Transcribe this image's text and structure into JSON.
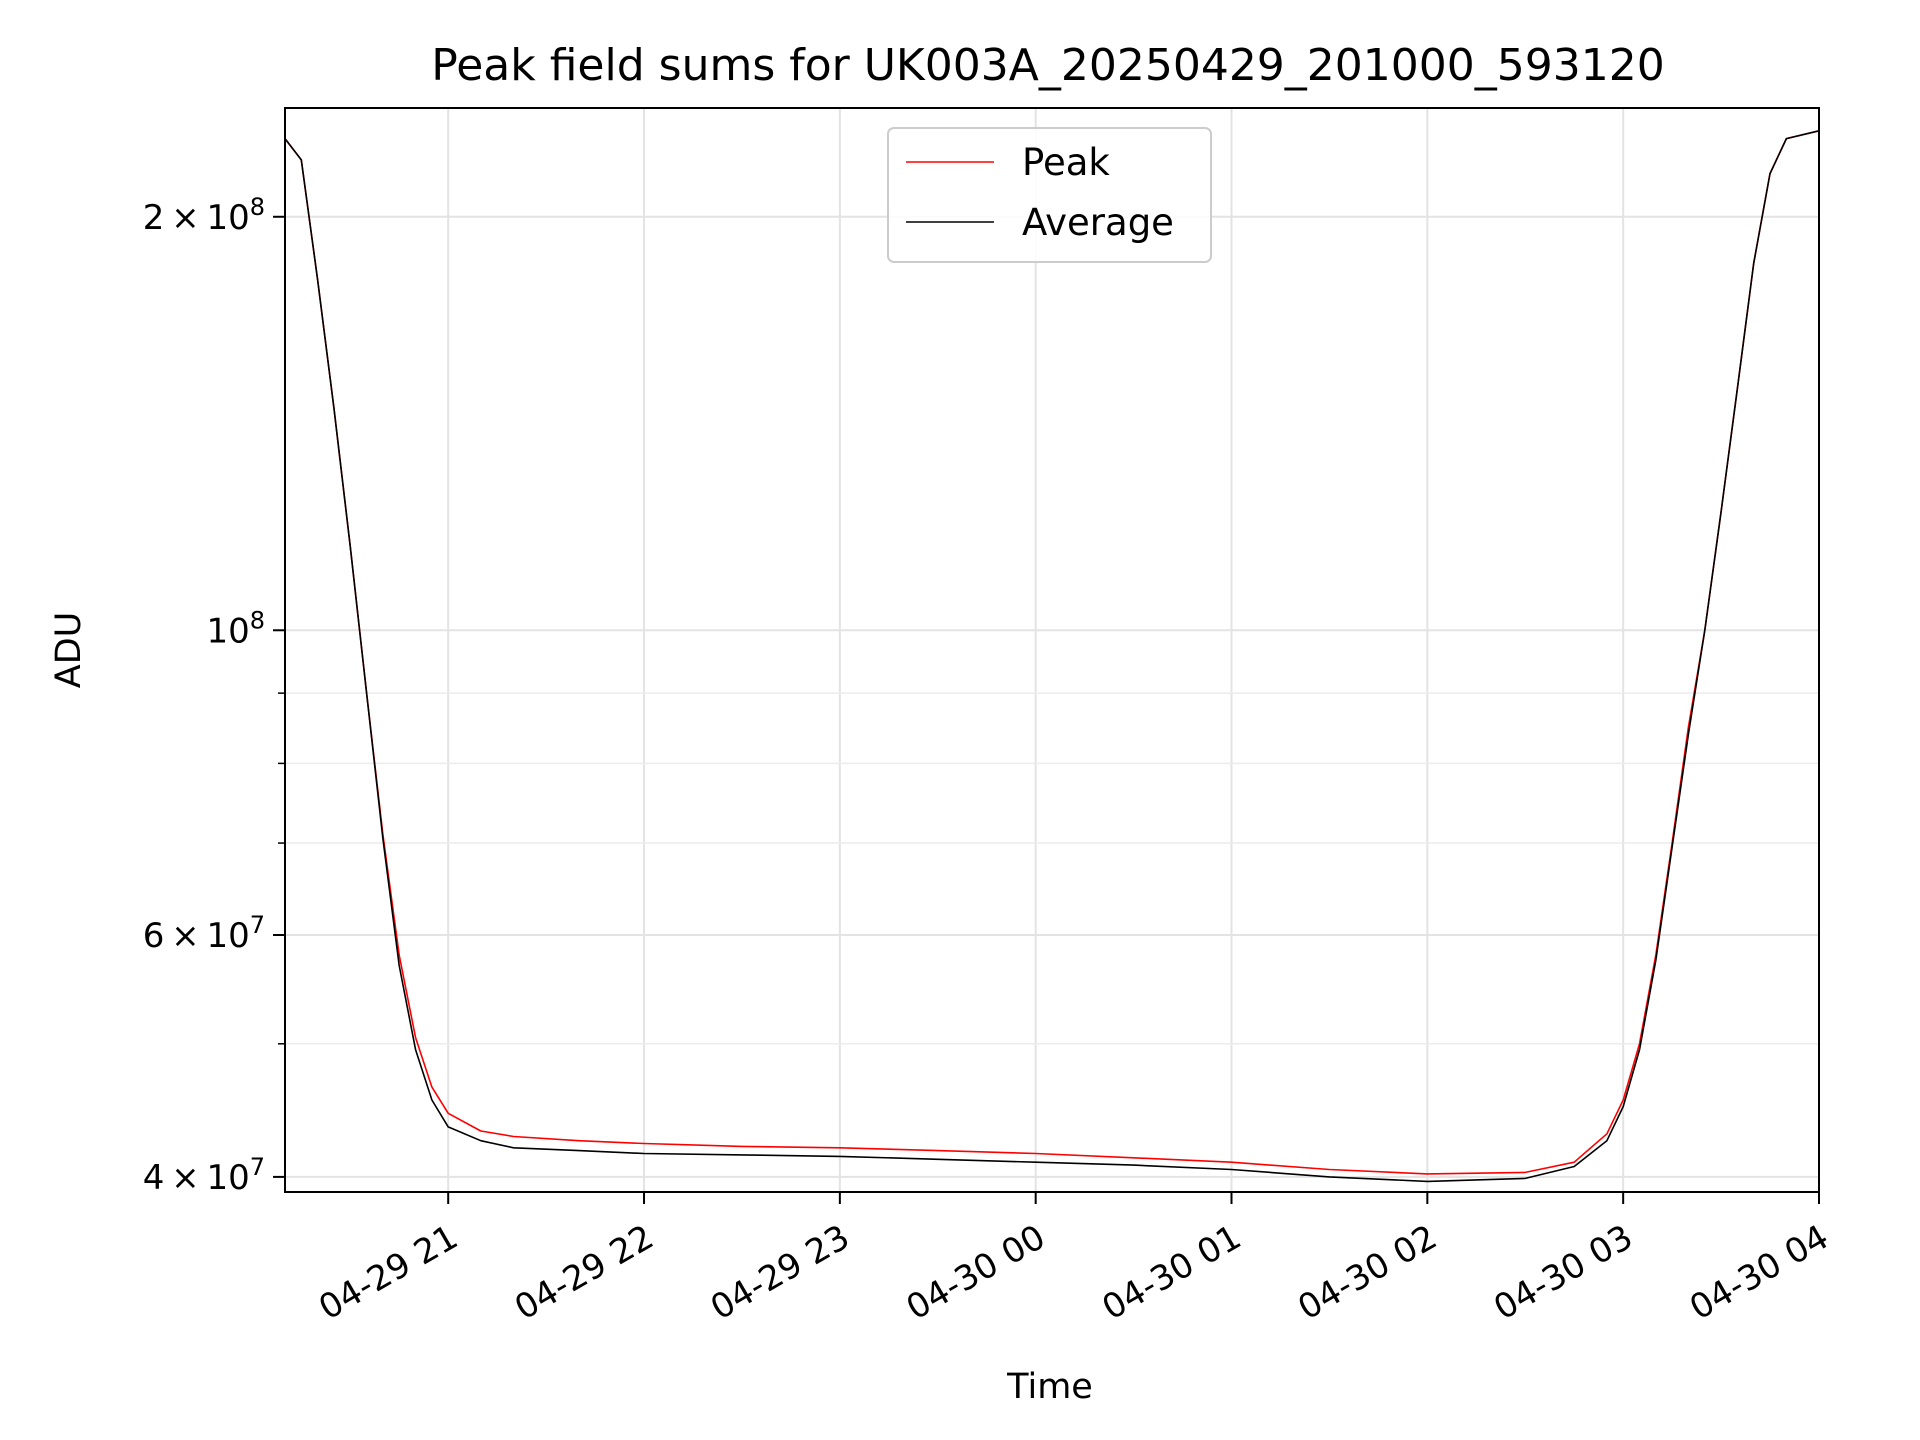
{
  "chart_data": {
    "type": "line",
    "title": "Peak field sums for UK003A_20250429_201000_593120",
    "xlabel": "Time",
    "ylabel": "ADU",
    "y_scale": "log",
    "grid": true,
    "legend_position": "top-center",
    "xlim": [
      "2025-04-29 20:10",
      "2025-04-30 04:00"
    ],
    "ylim": [
      39000000,
      240000000
    ],
    "x_ticks": [
      {
        "value": "2025-04-29 21:00",
        "label": "04-29 21"
      },
      {
        "value": "2025-04-29 22:00",
        "label": "04-29 22"
      },
      {
        "value": "2025-04-29 23:00",
        "label": "04-29 23"
      },
      {
        "value": "2025-04-30 00:00",
        "label": "04-30 00"
      },
      {
        "value": "2025-04-30 01:00",
        "label": "04-30 01"
      },
      {
        "value": "2025-04-30 02:00",
        "label": "04-30 02"
      },
      {
        "value": "2025-04-30 03:00",
        "label": "04-30 03"
      },
      {
        "value": "2025-04-30 04:00",
        "label": "04-30 04"
      }
    ],
    "y_ticks": [
      {
        "value": 40000000,
        "base": "4",
        "exp": "7"
      },
      {
        "value": 60000000,
        "base": "6",
        "exp": "7"
      },
      {
        "value": 100000000,
        "base": "",
        "exp": "8"
      },
      {
        "value": 200000000,
        "base": "2",
        "exp": "8"
      }
    ],
    "y_minor_ticks": [
      50000000,
      70000000,
      80000000,
      90000000
    ],
    "series": [
      {
        "name": "Peak",
        "color": "#ff0000",
        "points": [
          [
            "2025-04-29 20:10",
            228000000
          ],
          [
            "2025-04-29 20:15",
            220000000
          ],
          [
            "2025-04-29 20:20",
            180000000
          ],
          [
            "2025-04-29 20:25",
            145000000
          ],
          [
            "2025-04-29 20:30",
            115000000
          ],
          [
            "2025-04-29 20:35",
            90000000
          ],
          [
            "2025-04-29 20:40",
            71000000
          ],
          [
            "2025-04-29 20:45",
            58000000
          ],
          [
            "2025-04-29 20:50",
            50500000
          ],
          [
            "2025-04-29 20:55",
            46500000
          ],
          [
            "2025-04-29 21:00",
            44500000
          ],
          [
            "2025-04-29 21:10",
            43200000
          ],
          [
            "2025-04-29 21:20",
            42800000
          ],
          [
            "2025-04-29 21:40",
            42500000
          ],
          [
            "2025-04-29 22:00",
            42300000
          ],
          [
            "2025-04-29 22:30",
            42100000
          ],
          [
            "2025-04-29 23:00",
            42000000
          ],
          [
            "2025-04-29 23:30",
            41800000
          ],
          [
            "2025-04-30 00:00",
            41600000
          ],
          [
            "2025-04-30 00:30",
            41300000
          ],
          [
            "2025-04-30 01:00",
            41000000
          ],
          [
            "2025-04-30 01:30",
            40500000
          ],
          [
            "2025-04-30 02:00",
            40200000
          ],
          [
            "2025-04-30 02:30",
            40300000
          ],
          [
            "2025-04-30 02:45",
            41000000
          ],
          [
            "2025-04-30 02:55",
            43000000
          ],
          [
            "2025-04-30 03:00",
            45500000
          ],
          [
            "2025-04-30 03:05",
            50000000
          ],
          [
            "2025-04-30 03:10",
            58000000
          ],
          [
            "2025-04-30 03:15",
            70000000
          ],
          [
            "2025-04-30 03:20",
            85000000
          ],
          [
            "2025-04-30 03:25",
            100000000
          ],
          [
            "2025-04-30 03:30",
            122000000
          ],
          [
            "2025-04-30 03:35",
            150000000
          ],
          [
            "2025-04-30 03:40",
            185000000
          ],
          [
            "2025-04-30 03:45",
            215000000
          ],
          [
            "2025-04-30 03:50",
            228000000
          ],
          [
            "2025-04-30 04:00",
            231000000
          ]
        ]
      },
      {
        "name": "Average",
        "color": "#000000",
        "points": [
          [
            "2025-04-29 20:10",
            228000000
          ],
          [
            "2025-04-29 20:15",
            220000000
          ],
          [
            "2025-04-29 20:20",
            180000000
          ],
          [
            "2025-04-29 20:25",
            145000000
          ],
          [
            "2025-04-29 20:30",
            115000000
          ],
          [
            "2025-04-29 20:35",
            90000000
          ],
          [
            "2025-04-29 20:40",
            70500000
          ],
          [
            "2025-04-29 20:45",
            57000000
          ],
          [
            "2025-04-29 20:50",
            49500000
          ],
          [
            "2025-04-29 20:55",
            45500000
          ],
          [
            "2025-04-29 21:00",
            43500000
          ],
          [
            "2025-04-29 21:10",
            42500000
          ],
          [
            "2025-04-29 21:20",
            42000000
          ],
          [
            "2025-04-29 21:40",
            41800000
          ],
          [
            "2025-04-29 22:00",
            41600000
          ],
          [
            "2025-04-29 22:30",
            41500000
          ],
          [
            "2025-04-29 23:00",
            41400000
          ],
          [
            "2025-04-29 23:30",
            41200000
          ],
          [
            "2025-04-30 00:00",
            41000000
          ],
          [
            "2025-04-30 00:30",
            40800000
          ],
          [
            "2025-04-30 01:00",
            40500000
          ],
          [
            "2025-04-30 01:30",
            40000000
          ],
          [
            "2025-04-30 02:00",
            39700000
          ],
          [
            "2025-04-30 02:30",
            39900000
          ],
          [
            "2025-04-30 02:45",
            40700000
          ],
          [
            "2025-04-30 02:55",
            42500000
          ],
          [
            "2025-04-30 03:00",
            45000000
          ],
          [
            "2025-04-30 03:05",
            49500000
          ],
          [
            "2025-04-30 03:10",
            57500000
          ],
          [
            "2025-04-30 03:15",
            69500000
          ],
          [
            "2025-04-30 03:20",
            84000000
          ],
          [
            "2025-04-30 03:25",
            100000000
          ],
          [
            "2025-04-30 03:30",
            122000000
          ],
          [
            "2025-04-30 03:35",
            150000000
          ],
          [
            "2025-04-30 03:40",
            185000000
          ],
          [
            "2025-04-30 03:45",
            215000000
          ],
          [
            "2025-04-30 03:50",
            228000000
          ],
          [
            "2025-04-30 04:00",
            231000000
          ]
        ]
      }
    ]
  }
}
